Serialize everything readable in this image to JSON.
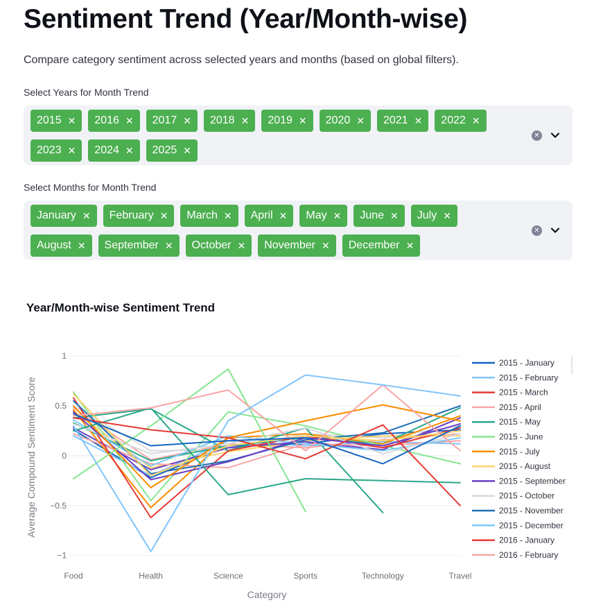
{
  "page": {
    "title": "Sentiment Trend (Year/Month-wise)",
    "description": "Compare category sentiment across selected years and months (based on global filters)."
  },
  "years_filter": {
    "label": "Select Years for Month Trend",
    "rows": [
      [
        "2015",
        "2016",
        "2017",
        "2018",
        "2019",
        "2020",
        "2021",
        "2022"
      ],
      [
        "2023",
        "2024",
        "2025"
      ]
    ]
  },
  "months_filter": {
    "label": "Select Months for Month Trend",
    "rows": [
      [
        "January",
        "February",
        "March",
        "April",
        "May",
        "June",
        "July"
      ],
      [
        "August",
        "September",
        "October",
        "November",
        "December"
      ]
    ]
  },
  "icons": {
    "chip_remove": "close-icon",
    "clear_all": "clear-icon",
    "dropdown": "chevron-down-icon"
  },
  "chart_data": {
    "type": "line",
    "title": "Year/Month-wise Sentiment Trend",
    "xlabel": "Category",
    "ylabel": "Average Compound Sentiment Score",
    "categories": [
      "Food",
      "Health",
      "Science",
      "Sports",
      "Technology",
      "Travel"
    ],
    "ylim": [
      -1.1,
      1.05
    ],
    "yticks": [
      1,
      0.5,
      0,
      -0.5,
      -1
    ],
    "ytick_labels": [
      "1",
      "0.5",
      "0",
      "−0.5",
      "−1"
    ],
    "grid": true,
    "legend_position": "right",
    "series": [
      {
        "name": "2015 - January",
        "color": "#1565c0",
        "values": [
          0.42,
          0.1,
          0.15,
          0.18,
          -0.08,
          0.3
        ]
      },
      {
        "name": "2015 - February",
        "color": "#81c4fa",
        "values": [
          0.3,
          -0.96,
          0.35,
          0.81,
          0.71,
          0.6
        ]
      },
      {
        "name": "2015 - March",
        "color": "#e53935",
        "values": [
          0.38,
          0.26,
          0.18,
          -0.03,
          0.31,
          -0.5
        ]
      },
      {
        "name": "2015 - April",
        "color": "#f8a5a5",
        "values": [
          0.4,
          0.48,
          0.66,
          0.05,
          0.71,
          0.05
        ]
      },
      {
        "name": "2015 - May",
        "color": "#2aa88a",
        "values": [
          0.25,
          0.48,
          -0.39,
          -0.23,
          -0.25,
          -0.27
        ]
      },
      {
        "name": "2015 - June",
        "color": "#86e58f",
        "values": [
          -0.23,
          0.3,
          0.87,
          -0.56,
          null,
          null
        ]
      },
      {
        "name": "2015 - July",
        "color": "#fb8c00",
        "values": [
          0.5,
          -0.32,
          0.18,
          0.35,
          0.51,
          0.35
        ]
      },
      {
        "name": "2015 - August",
        "color": "#fdd36b",
        "values": [
          0.62,
          -0.2,
          0.1,
          0.2,
          0.15,
          0.25
        ]
      },
      {
        "name": "2015 - September",
        "color": "#6a3fc2",
        "values": [
          0.44,
          -0.24,
          -0.06,
          0.18,
          0.1,
          0.32
        ]
      },
      {
        "name": "2015 - October",
        "color": "#d6d9de",
        "values": [
          0.32,
          0.02,
          0.12,
          0.28,
          0.02,
          0.22
        ]
      },
      {
        "name": "2015 - November",
        "color": "#1e6fb5",
        "values": [
          0.55,
          -0.18,
          -0.05,
          0.16,
          0.23,
          0.5
        ]
      },
      {
        "name": "2015 - December",
        "color": "#7cc8f8",
        "values": [
          0.36,
          -0.1,
          0.2,
          0.12,
          0.05,
          0.18
        ]
      },
      {
        "name": "2016 - January",
        "color": "#e53935",
        "values": [
          0.58,
          -0.62,
          0.05,
          0.2,
          0.08,
          0.28
        ]
      },
      {
        "name": "2016 - February",
        "color": "#f8a5a5",
        "values": [
          0.22,
          -0.08,
          -0.12,
          0.12,
          0.1,
          0.15
        ]
      },
      {
        "name": "",
        "color": "#2aa88a",
        "values": [
          0.38,
          0.47,
          0.05,
          0.28,
          -0.57,
          null
        ]
      },
      {
        "name": "",
        "color": "#86e58f",
        "values": [
          0.64,
          -0.45,
          0.44,
          0.3,
          0.1,
          -0.08
        ]
      },
      {
        "name": "",
        "color": "#fb8c00",
        "values": [
          0.46,
          -0.52,
          0.18,
          0.22,
          0.12,
          0.4
        ]
      },
      {
        "name": "",
        "color": "#6a3fc2",
        "values": [
          0.28,
          -0.14,
          0.08,
          0.14,
          0.06,
          0.38
        ]
      },
      {
        "name": "",
        "color": "#2aa88a",
        "values": [
          0.33,
          -0.05,
          0.1,
          0.18,
          0.12,
          0.48
        ]
      },
      {
        "name": "",
        "color": "#fdd36b",
        "values": [
          0.45,
          -0.12,
          0.04,
          0.15,
          0.2,
          0.2
        ]
      },
      {
        "name": "",
        "color": "#81c4fa",
        "values": [
          0.2,
          -0.2,
          0.15,
          0.1,
          0.14,
          0.12
        ]
      },
      {
        "name": "",
        "color": "#d6d9de",
        "values": [
          0.5,
          0.05,
          0.06,
          0.22,
          0.18,
          0.3
        ]
      },
      {
        "name": "",
        "color": "#1565c0",
        "values": [
          0.26,
          -0.22,
          0.1,
          0.12,
          0.22,
          0.26
        ]
      },
      {
        "name": "",
        "color": "#f8a5a5",
        "values": [
          0.48,
          -0.04,
          0.12,
          0.08,
          0.16,
          0.22
        ]
      }
    ]
  }
}
